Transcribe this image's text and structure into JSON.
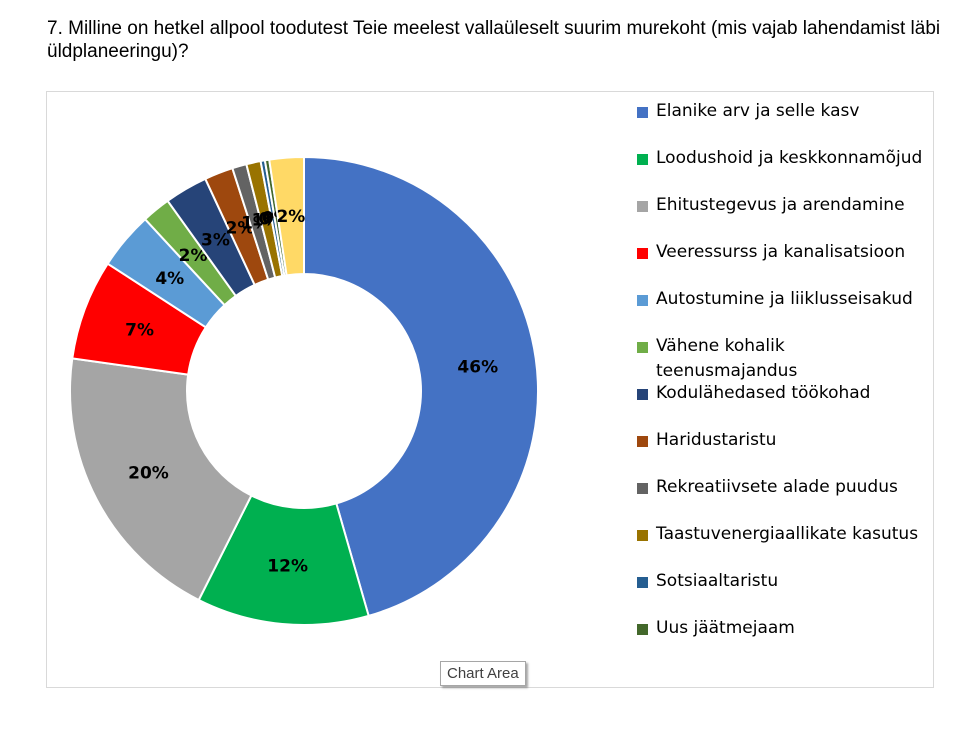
{
  "question": "7. Milline on hetkel allpool toodutest Teie meelest vallaüleselt suurim murekoht (mis vajab lahendamist läbi üldplaneeringu)?",
  "tooltip": "Chart Area",
  "chart_data": {
    "type": "pie",
    "donut": true,
    "title": "",
    "legend_position": "right",
    "slices": [
      {
        "label": "Elanike arv ja selle kasv",
        "value": 46,
        "display": "46%",
        "color": "#4472C4"
      },
      {
        "label": "Loodushoid ja keskkonnamõjud",
        "value": 12,
        "display": "12%",
        "color": "#00B050"
      },
      {
        "label": "Ehitustegevus ja arendamine",
        "value": 20,
        "display": "20%",
        "color": "#A5A5A5"
      },
      {
        "label": "Veeressurss ja kanalisatsioon",
        "value": 7,
        "display": "7%",
        "color": "#FF0000"
      },
      {
        "label": "Autostumine ja liiklusseisakud",
        "value": 4,
        "display": "4%",
        "color": "#5B9BD5"
      },
      {
        "label": "Vähene kohalik teenusmajandus",
        "value": 2,
        "display": "2%",
        "color": "#70AD47"
      },
      {
        "label": "Kodulähedased töökohad",
        "value": 3,
        "display": "3%",
        "color": "#264478"
      },
      {
        "label": "Haridustaristu",
        "value": 2,
        "display": "2%",
        "color": "#9E480E"
      },
      {
        "label": "Rekreatiivsete alade puudus",
        "value": 1,
        "display": "1%",
        "color": "#636363"
      },
      {
        "label": "Taastuvenergiaallikate kasutus",
        "value": 1,
        "display": "1%",
        "color": "#997300"
      },
      {
        "label": "Sotsiaaltaristu",
        "value": 0.3,
        "display": "0%",
        "color": "#255E91"
      },
      {
        "label": "Uus jäätmejaam",
        "value": 0.3,
        "display": "0%",
        "color": "#43682B"
      },
      {
        "label": "",
        "value": 2.4,
        "display": "2%",
        "color": "#FFD966"
      }
    ]
  }
}
